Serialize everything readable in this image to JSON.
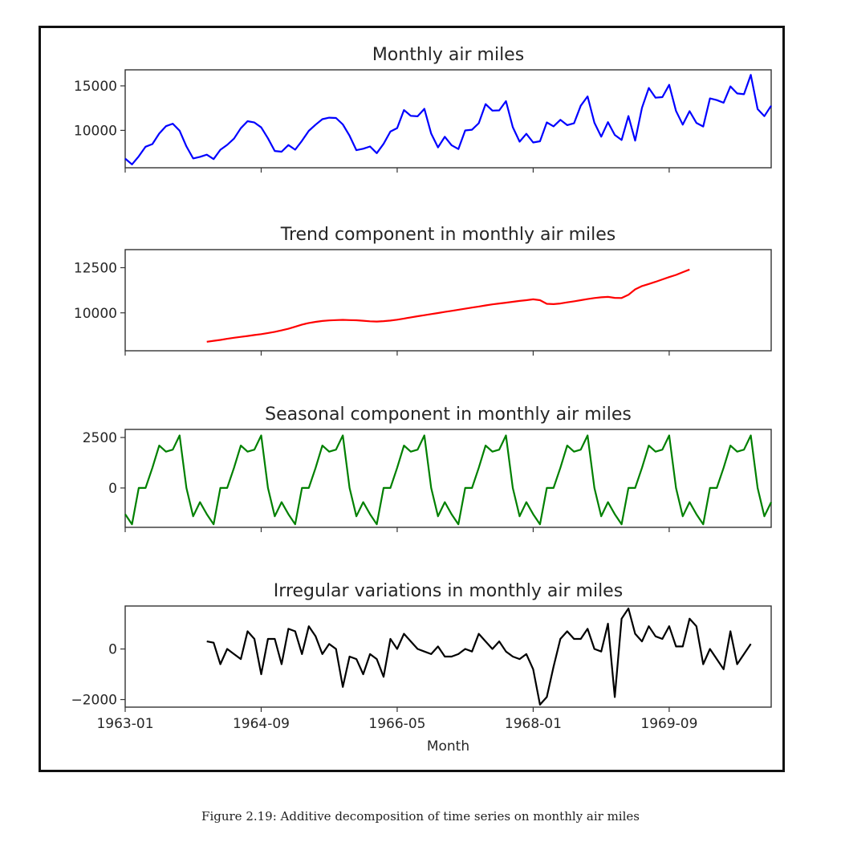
{
  "caption": "Figure 2.19: Additive decomposition of time series on monthly air miles",
  "x_axis": {
    "label": "Month",
    "start": "1963-01",
    "end": "1970-12",
    "tick_labels": [
      "1963-01",
      "1964-09",
      "1966-05",
      "1968-01",
      "1969-09"
    ]
  },
  "chart_data": [
    {
      "type": "line",
      "title": "Monthly air miles",
      "color": "#0000ff",
      "ylim": [
        5800,
        16800
      ],
      "y_ticks": [
        10000,
        15000
      ],
      "y_tick_labels": [
        "10000",
        "15000"
      ],
      "start": "1963-01",
      "values": [
        6827,
        6178,
        7084,
        8162,
        8462,
        9644,
        10466,
        10748,
        9963,
        8194,
        6848,
        7027,
        7269,
        6775,
        7819,
        8371,
        9069,
        10248,
        11030,
        10882,
        10333,
        9109,
        7685,
        7602,
        8350,
        7829,
        8829,
        9948,
        10638,
        11253,
        11424,
        11391,
        10665,
        9396,
        7775,
        7933,
        8186,
        7444,
        8484,
        9864,
        10252,
        12282,
        11637,
        11577,
        12417,
        9637,
        8094,
        9280,
        8334,
        7899,
        9994,
        10078,
        10801,
        12953,
        12222,
        12246,
        13281,
        10366,
        8730,
        9614,
        8639,
        8772,
        10894,
        10455,
        11179,
        10588,
        10794,
        12770,
        13812,
        10857,
        9290,
        10925,
        9491,
        8919,
        11607,
        8852,
        12537,
        14759,
        13667,
        13731,
        15110,
        12185,
        10645,
        12161,
        10840,
        10436,
        13589,
        13402,
        13103,
        14933,
        14147,
        14057,
        16234,
        12389,
        11594,
        12772
      ]
    },
    {
      "type": "line",
      "title": "Trend component in monthly air miles",
      "color": "#ff0000",
      "ylim": [
        7900,
        13500
      ],
      "y_ticks": [
        10000,
        12500
      ],
      "y_tick_labels": [
        "10000",
        "12500"
      ],
      "start": "1964-01",
      "values": [
        8400,
        8450,
        8500,
        8560,
        8620,
        8670,
        8720,
        8770,
        8820,
        8880,
        8950,
        9030,
        9120,
        9230,
        9350,
        9440,
        9500,
        9550,
        9580,
        9600,
        9610,
        9600,
        9590,
        9560,
        9530,
        9520,
        9540,
        9570,
        9620,
        9680,
        9750,
        9810,
        9870,
        9930,
        9990,
        10050,
        10110,
        10170,
        10230,
        10290,
        10350,
        10410,
        10470,
        10520,
        10560,
        10610,
        10660,
        10700,
        10750,
        10700,
        10500,
        10480,
        10520,
        10580,
        10640,
        10700,
        10760,
        10820,
        10860,
        10880,
        10830,
        10820,
        11000,
        11300,
        11480,
        11600,
        11720,
        11850,
        11980,
        12100,
        12250,
        12400
      ],
      "null_months_after": 12
    },
    {
      "type": "line",
      "title": "Seasonal component in monthly air miles",
      "color": "#008000",
      "ylim": [
        -1950,
        2900
      ],
      "y_ticks": [
        0,
        2500
      ],
      "y_tick_labels": [
        "0",
        "2500"
      ],
      "start": "1963-01",
      "pattern": [
        -1300,
        -1800,
        0,
        0,
        1000,
        2100,
        1800,
        1900,
        2600,
        0,
        -1400,
        -700
      ],
      "note_values_repeat_yearly": true
    },
    {
      "type": "line",
      "title": "Irregular variations in monthly air miles",
      "color": "#000000",
      "ylim": [
        -2300,
        1700
      ],
      "y_ticks": [
        -2000,
        0
      ],
      "y_tick_labels": [
        "−2000",
        "0"
      ],
      "start": "1964-01",
      "values": [
        300,
        250,
        -600,
        0,
        -200,
        -400,
        700,
        400,
        -1000,
        400,
        400,
        -600,
        800,
        700,
        -200,
        900,
        500,
        -200,
        200,
        0,
        -1500,
        -300,
        -400,
        -1000,
        -200,
        -400,
        -1100,
        400,
        0,
        600,
        300,
        0,
        -100,
        -200,
        100,
        -300,
        -300,
        -200,
        0,
        -100,
        600,
        300,
        0,
        300,
        -100,
        -300,
        -400,
        -200,
        -800,
        -2200,
        -1900,
        -700,
        400,
        700,
        400,
        400,
        800,
        0,
        -100,
        1000,
        -1900,
        1200,
        1600,
        600,
        300,
        900,
        500,
        400,
        900,
        100,
        100,
        1200,
        900,
        -600,
        0,
        -400,
        -800,
        700,
        -600,
        -200,
        200
      ]
    }
  ]
}
